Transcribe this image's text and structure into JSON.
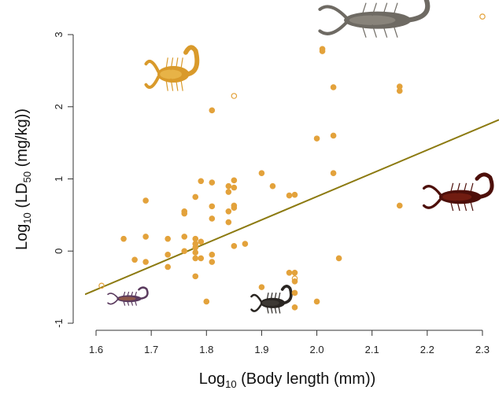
{
  "chart_data": {
    "type": "scatter",
    "xlabel": {
      "prefix": "Log",
      "sub": "10",
      "rest": " (Body length (mm))"
    },
    "ylabel": {
      "prefix": "Log",
      "sub": "10",
      "mid": " (LD",
      "sub2": "50",
      "rest": " (mg/kg))"
    },
    "xlim": [
      1.58,
      2.33
    ],
    "ylim": [
      -1.0,
      3.0
    ],
    "x_ticks": [
      1.6,
      1.7,
      1.8,
      1.9,
      2.0,
      2.1,
      2.2,
      2.3
    ],
    "x_tick_labels": [
      "1.6",
      "1.7",
      "1.8",
      "1.9",
      "2.0",
      "2.1",
      "2.2",
      "2.3"
    ],
    "y_ticks": [
      -1,
      0,
      1,
      2,
      3
    ],
    "y_tick_labels": [
      "-1",
      "0",
      "1",
      "2",
      "3"
    ],
    "grid": false,
    "colors": {
      "points": "#e3a23b",
      "line": "#8c7a10",
      "axis": "#333333"
    },
    "trend_line": {
      "x": [
        1.58,
        2.33
      ],
      "y": [
        -0.6,
        1.82
      ]
    },
    "series": [
      {
        "marker": "filled",
        "points": [
          [
            1.65,
            0.17
          ],
          [
            1.67,
            -0.12
          ],
          [
            1.69,
            0.2
          ],
          [
            1.69,
            0.7
          ],
          [
            1.69,
            -0.15
          ],
          [
            1.73,
            0.17
          ],
          [
            1.73,
            -0.05
          ],
          [
            1.73,
            -0.22
          ],
          [
            1.76,
            0.55
          ],
          [
            1.76,
            0.52
          ],
          [
            1.76,
            0.2
          ],
          [
            1.76,
            0.0
          ],
          [
            1.78,
            0.75
          ],
          [
            1.78,
            0.17
          ],
          [
            1.78,
            0.1
          ],
          [
            1.78,
            0.05
          ],
          [
            1.78,
            -0.02
          ],
          [
            1.78,
            -0.1
          ],
          [
            1.78,
            -0.35
          ],
          [
            1.79,
            0.97
          ],
          [
            1.79,
            0.13
          ],
          [
            1.79,
            -0.1
          ],
          [
            1.8,
            -0.7
          ],
          [
            1.81,
            1.95
          ],
          [
            1.81,
            0.95
          ],
          [
            1.81,
            0.62
          ],
          [
            1.81,
            0.45
          ],
          [
            1.81,
            -0.05
          ],
          [
            1.81,
            -0.15
          ],
          [
            1.84,
            0.9
          ],
          [
            1.84,
            0.82
          ],
          [
            1.84,
            0.55
          ],
          [
            1.84,
            0.4
          ],
          [
            1.85,
            0.98
          ],
          [
            1.85,
            0.88
          ],
          [
            1.85,
            0.63
          ],
          [
            1.85,
            0.6
          ],
          [
            1.85,
            0.07
          ],
          [
            1.87,
            0.1
          ],
          [
            1.9,
            1.08
          ],
          [
            1.9,
            -0.5
          ],
          [
            1.92,
            0.9
          ],
          [
            1.95,
            0.77
          ],
          [
            1.95,
            -0.3
          ],
          [
            1.96,
            0.78
          ],
          [
            1.96,
            -0.3
          ],
          [
            1.96,
            -0.42
          ],
          [
            1.96,
            -0.58
          ],
          [
            1.96,
            -0.78
          ],
          [
            2.0,
            1.56
          ],
          [
            2.0,
            -0.7
          ],
          [
            2.01,
            2.8
          ],
          [
            2.01,
            2.77
          ],
          [
            2.03,
            2.27
          ],
          [
            2.03,
            1.6
          ],
          [
            2.03,
            1.08
          ],
          [
            2.04,
            -0.1
          ],
          [
            2.15,
            2.28
          ],
          [
            2.15,
            2.22
          ],
          [
            2.15,
            0.63
          ]
        ]
      },
      {
        "marker": "open",
        "points": [
          [
            1.61,
            -0.48
          ],
          [
            1.85,
            2.15
          ],
          [
            1.96,
            -0.38
          ],
          [
            2.3,
            3.25
          ]
        ]
      }
    ],
    "images": [
      {
        "name": "scorpion-large-grey-image",
        "x": 2.11,
        "y": 3.2,
        "w": 0.19,
        "h": 0.75
      },
      {
        "name": "scorpion-yellow-image",
        "x": 1.74,
        "y": 2.45,
        "w": 0.09,
        "h": 0.72
      },
      {
        "name": "scorpion-dark-red-image",
        "x": 2.26,
        "y": 0.75,
        "w": 0.12,
        "h": 0.6
      },
      {
        "name": "scorpion-black-image",
        "x": 1.92,
        "y": -0.72,
        "w": 0.07,
        "h": 0.45
      },
      {
        "name": "scorpion-small-purple-image",
        "x": 1.66,
        "y": -0.66,
        "w": 0.07,
        "h": 0.3
      }
    ]
  }
}
